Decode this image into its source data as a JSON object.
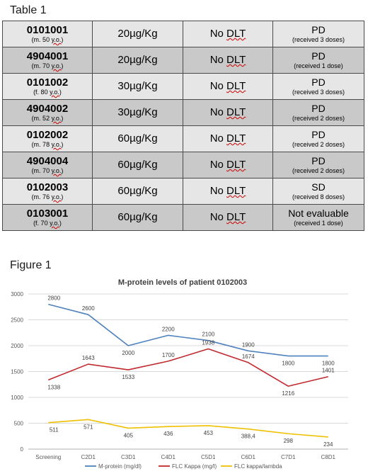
{
  "table_heading": "Table 1",
  "figure_heading": "Figure 1",
  "table": {
    "rows": [
      {
        "id": "0101001",
        "info": "(m. 50 y.o.)",
        "dose": "20µg/Kg",
        "dlt": "No DLT",
        "response": "PD",
        "doses": "(received 3 doses)"
      },
      {
        "id": "4904001",
        "info": "(m. 70 y.o.)",
        "dose": "20µg/Kg",
        "dlt": "No DLT",
        "response": "PD",
        "doses": "(received 1 dose)"
      },
      {
        "id": "0101002",
        "info": "(f. 80 y.o.)",
        "dose": "30µg/Kg",
        "dlt": "No DLT",
        "response": "PD",
        "doses": "(received 3 doses)"
      },
      {
        "id": "4904002",
        "info": "(m. 52 y.o.)",
        "dose": "30µg/Kg",
        "dlt": "No DLT",
        "response": "PD",
        "doses": "(received 2 doses)"
      },
      {
        "id": "0102002",
        "info": "(m. 78 y.o.)",
        "dose": "60µg/Kg",
        "dlt": "No DLT",
        "response": "PD",
        "doses": "(received 2 doses)"
      },
      {
        "id": "4904004",
        "info": "(m. 70 y.o.)",
        "dose": "60µg/Kg",
        "dlt": "No DLT",
        "response": "PD",
        "doses": "(received 2 doses)"
      },
      {
        "id": "0102003",
        "info": "(m. 76 y.o.)",
        "dose": "60µg/Kg",
        "dlt": "No DLT",
        "response": "SD",
        "doses": "(received 8 doses)"
      },
      {
        "id": "0103001",
        "info": "(f. 70 y.o.)",
        "dose": "60µg/Kg",
        "dlt": "No DLT",
        "response": "Not evaluable",
        "doses": "(received 1 dose)"
      }
    ]
  },
  "chart_data": {
    "type": "line",
    "title": "M-protein levels of patient 0102003",
    "categories": [
      "Screening",
      "C2D1",
      "C3D1",
      "C4D1",
      "C5D1",
      "C6D1",
      "C7D1",
      "C8D1"
    ],
    "ylim": [
      0,
      3000
    ],
    "yticks": [
      "0",
      "500",
      "1000",
      "1500",
      "2000",
      "2500",
      "3000"
    ],
    "grid": true,
    "legend_position": "bottom",
    "series": [
      {
        "name": "M-protein (mg/dl)",
        "color": "#4f81bd",
        "values": [
          2800,
          2600,
          2000,
          2200,
          2100,
          1900,
          1800,
          1800
        ],
        "labels": [
          "2800",
          "2600",
          "2000",
          "2200",
          "2100",
          "1900",
          "1800",
          "1800"
        ]
      },
      {
        "name": "FLC Kappa (mg/l)",
        "color": "#c0292d",
        "values": [
          1338,
          1643,
          1533,
          1700,
          1938,
          1674,
          1216,
          1401
        ],
        "labels": [
          "1338",
          "1643",
          "1533",
          "1700",
          "1938",
          "1674",
          "1216",
          "1401"
        ]
      },
      {
        "name": "FLC kappa/lambda",
        "color": "#f0c000",
        "values": [
          511,
          571,
          405,
          436,
          453,
          388.4,
          298,
          234
        ],
        "labels": [
          "511",
          "571",
          "405",
          "436",
          "453",
          "388,4",
          "298",
          "234"
        ]
      }
    ]
  }
}
